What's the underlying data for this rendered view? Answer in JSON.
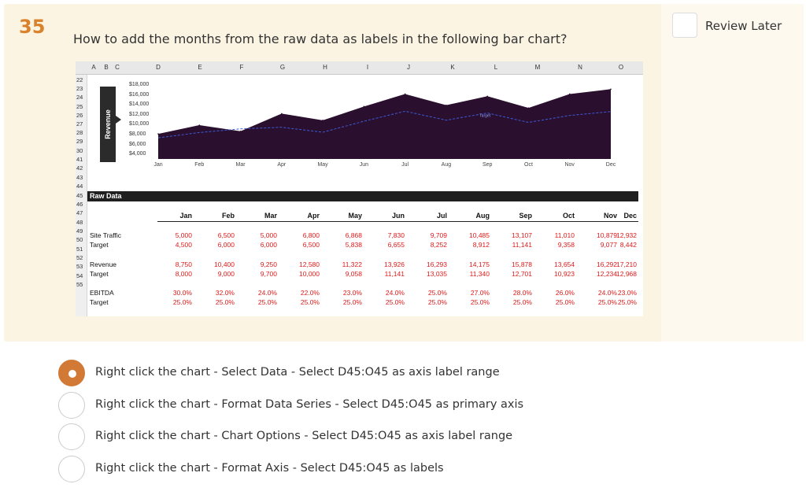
{
  "question": {
    "number": "35",
    "text": "How to add the months from the raw data as labels in the following bar chart?"
  },
  "review_later": {
    "label": "Review Later"
  },
  "sheet": {
    "columns": [
      "A",
      "B",
      "C",
      "D",
      "E",
      "F",
      "G",
      "H",
      "I",
      "J",
      "K",
      "L",
      "M",
      "N",
      "O"
    ],
    "rows": [
      "22",
      "23",
      "24",
      "25",
      "26",
      "27",
      "28",
      "29",
      "30",
      "41",
      "42",
      "43",
      "44",
      "45",
      "46",
      "47",
      "48",
      "49",
      "50",
      "51",
      "52",
      "53",
      "54",
      "55"
    ],
    "raw_data_title": "Raw Data",
    "months": [
      "Jan",
      "Feb",
      "Mar",
      "Apr",
      "May",
      "Jun",
      "Jul",
      "Aug",
      "Sep",
      "Oct",
      "Nov",
      "Dec"
    ],
    "table": [
      {
        "label": "Site Traffic",
        "values": [
          "5,000",
          "6,500",
          "5,000",
          "6,800",
          "6,868",
          "7,830",
          "9,709",
          "10,485",
          "13,107",
          "11,010",
          "10,879",
          "12,932"
        ]
      },
      {
        "label": "Target",
        "values": [
          "4,500",
          "6,000",
          "6,000",
          "6,500",
          "5,838",
          "6,655",
          "8,252",
          "8,912",
          "11,141",
          "9,358",
          "9,077",
          "8,442"
        ]
      },
      {
        "label": "Revenue",
        "values": [
          "8,750",
          "10,400",
          "9,250",
          "12,580",
          "11,322",
          "13,926",
          "16,293",
          "14,175",
          "15,878",
          "13,654",
          "16,292",
          "17,210"
        ]
      },
      {
        "label": "Target",
        "values": [
          "8,000",
          "9,000",
          "9,700",
          "10,000",
          "9,058",
          "11,141",
          "13,035",
          "11,340",
          "12,701",
          "10,923",
          "12,234",
          "12,968"
        ]
      },
      {
        "label": "EBITDA",
        "values": [
          "30.0%",
          "32.0%",
          "24.0%",
          "22.0%",
          "23.0%",
          "24.0%",
          "25.0%",
          "27.0%",
          "28.0%",
          "26.0%",
          "24.0%",
          "23.0%"
        ]
      },
      {
        "label": "Target",
        "values": [
          "25.0%",
          "25.0%",
          "25.0%",
          "25.0%",
          "25.0%",
          "25.0%",
          "25.0%",
          "25.0%",
          "25.0%",
          "25.0%",
          "25.0%",
          "25.0%"
        ]
      }
    ]
  },
  "chart_data": {
    "type": "area",
    "categories": [
      "Jan",
      "Feb",
      "Mar",
      "Apr",
      "May",
      "Jun",
      "Jul",
      "Aug",
      "Sep",
      "Oct",
      "Nov",
      "Dec"
    ],
    "series": [
      {
        "name": "Revenue",
        "values": [
          8750,
          10400,
          9250,
          12580,
          11322,
          13926,
          16293,
          14175,
          15878,
          13654,
          16292,
          17210
        ],
        "color": "#2b0f2e"
      },
      {
        "name": "Target",
        "values": [
          8000,
          9000,
          9700,
          10000,
          9058,
          11141,
          13035,
          11340,
          12701,
          10923,
          12234,
          12968
        ],
        "color": "#3a5bd9"
      }
    ],
    "ylabel": "Revenue",
    "yticks": [
      "$18,000",
      "$16,000",
      "$14,000",
      "$12,000",
      "$10,000",
      "$8,000",
      "$6,000",
      "$4,000"
    ],
    "ylim": [
      4000,
      18000
    ],
    "annotation": "Target"
  },
  "options": [
    {
      "text": "Right click the chart - Select Data - Select D45:O45 as axis label range",
      "selected": true
    },
    {
      "text": "Right click the chart - Format Data Series - Select D45:O45 as primary axis",
      "selected": false
    },
    {
      "text": "Right click the chart - Chart Options - Select D45:O45 as axis label range",
      "selected": false
    },
    {
      "text": "Right click the chart - Format Axis - Select D45:O45 as labels",
      "selected": false
    }
  ]
}
